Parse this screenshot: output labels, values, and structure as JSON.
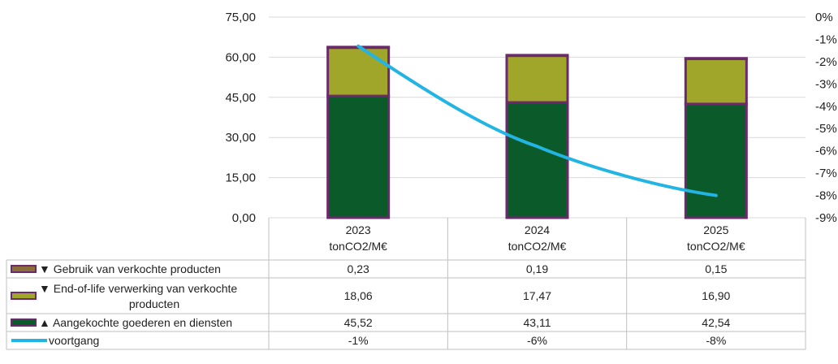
{
  "chart_data": {
    "type": "bar",
    "stacked": true,
    "categories": [
      "2023",
      "2024",
      "2025"
    ],
    "category_units": [
      "tonCO2/M€",
      "tonCO2/M€",
      "tonCO2/M€"
    ],
    "y_ticks": [
      "75,00",
      "60,00",
      "45,00",
      "30,00",
      "15,00",
      "0,00"
    ],
    "ylim": [
      0,
      75
    ],
    "y2_ticks": [
      "0%",
      "-1%",
      "-2%",
      "-3%",
      "-4%",
      "-5%",
      "-6%",
      "-7%",
      "-8%",
      "-9%"
    ],
    "y2lim": [
      -9,
      0
    ],
    "grid": true,
    "series": [
      {
        "name": "▲ Aangekochte goederen en diensten",
        "type": "bar",
        "color": "#0b5a2a",
        "border": "#6b2a6b",
        "values": [
          45.52,
          43.11,
          42.54
        ],
        "labels": [
          "45,52",
          "43,11",
          "42,54"
        ]
      },
      {
        "name": "▼ End-of-life verwerking van verkochte producten",
        "type": "bar",
        "color": "#a0a62a",
        "border": "#6b2a6b",
        "values": [
          18.06,
          17.47,
          16.9
        ],
        "labels": [
          "18,06",
          "17,47",
          "16,90"
        ]
      },
      {
        "name": "▼ Gebruik van verkochte producten",
        "type": "bar",
        "color": "#8b6f3a",
        "border": "#6b2a6b",
        "values": [
          0.23,
          0.19,
          0.15
        ],
        "labels": [
          "0,23",
          "0,19",
          "0,15"
        ]
      },
      {
        "name": "voortgang",
        "type": "line",
        "axis": "y2",
        "color": "#22b5e3",
        "values": [
          -1.3,
          -5.8,
          -8.0
        ],
        "labels": [
          "-1%",
          "-6%",
          "-8%"
        ]
      }
    ],
    "table_order": [
      2,
      1,
      0,
      3
    ]
  }
}
